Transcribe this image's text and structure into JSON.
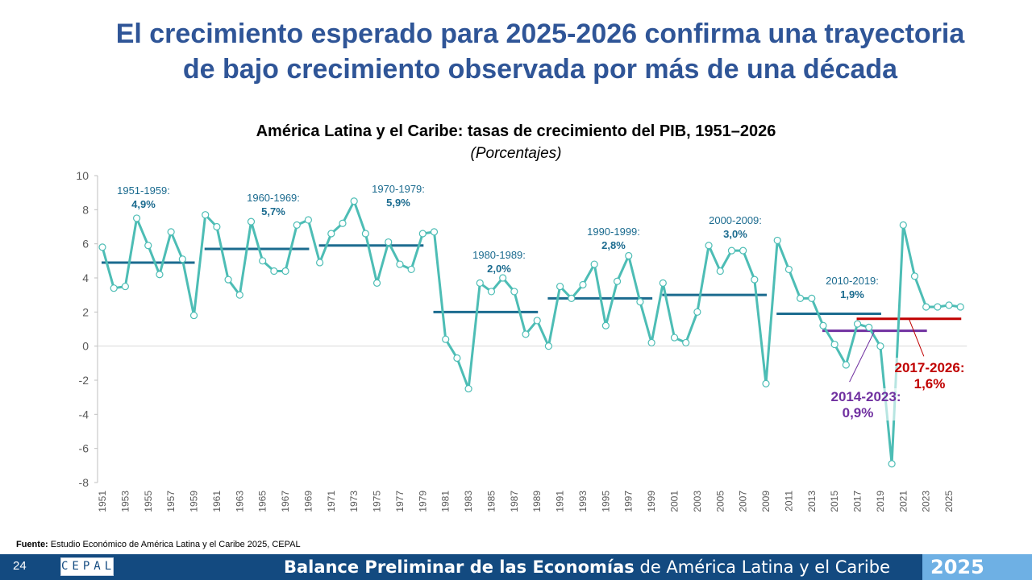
{
  "slide": {
    "title_line1": "El crecimiento esperado para 2025-2026 confirma una trayectoria",
    "title_line2": "de bajo crecimiento observada por más de una década",
    "source_label": "Fuente:",
    "source_text": " Estudio Económico de América Latina y el Caribe 2025, CEPAL",
    "footer": {
      "page_number": "24",
      "logo_text": "CEPAL",
      "publication_bold": "Balance Preliminar de las Economías",
      "publication_light": " de América Latina y el Caribe",
      "year": "2025"
    }
  },
  "colors": {
    "title": "#2f5597",
    "series": "#4dbdb5",
    "decade_avg": "#1b6b8f",
    "avg_2014_2023": "#7030a0",
    "avg_2017_2026": "#c00000",
    "footer_dark": "#134a80",
    "footer_light": "#6eb0e4"
  },
  "chart_data": {
    "type": "line",
    "title": "América Latina y el Caribe: tasas de crecimiento del PIB, 1951–2026",
    "subtitle": "(Porcentajes)",
    "xlabel": "",
    "ylabel": "",
    "ylim": [
      -8,
      10
    ],
    "yticks": [
      10,
      8,
      6,
      4,
      2,
      0,
      -2,
      -4,
      -6,
      -8
    ],
    "x_tick_labels": [
      "1951",
      "1953",
      "1955",
      "1957",
      "1959",
      "1961",
      "1963",
      "1965",
      "1967",
      "1969",
      "1971",
      "1973",
      "1975",
      "1977",
      "1979",
      "1981",
      "1983",
      "1985",
      "1987",
      "1989",
      "1991",
      "1993",
      "1995",
      "1997",
      "1999",
      "2001",
      "2003",
      "2005",
      "2007",
      "2009",
      "2011",
      "2013",
      "2015",
      "2017",
      "2019",
      "2021",
      "2023",
      "2025"
    ],
    "grid": false,
    "x": [
      1951,
      1952,
      1953,
      1954,
      1955,
      1956,
      1957,
      1958,
      1959,
      1960,
      1961,
      1962,
      1963,
      1964,
      1965,
      1966,
      1967,
      1968,
      1969,
      1970,
      1971,
      1972,
      1973,
      1974,
      1975,
      1976,
      1977,
      1978,
      1979,
      1980,
      1981,
      1982,
      1983,
      1984,
      1985,
      1986,
      1987,
      1988,
      1989,
      1990,
      1991,
      1992,
      1993,
      1994,
      1995,
      1996,
      1997,
      1998,
      1999,
      2000,
      2001,
      2002,
      2003,
      2004,
      2005,
      2006,
      2007,
      2008,
      2009,
      2010,
      2011,
      2012,
      2013,
      2014,
      2015,
      2016,
      2017,
      2018,
      2019,
      2020,
      2021,
      2022,
      2023,
      2024,
      2025,
      2026
    ],
    "series": [
      {
        "name": "Tasa de crecimiento del PIB",
        "values": [
          5.8,
          3.4,
          3.5,
          7.5,
          5.9,
          4.2,
          6.7,
          5.1,
          1.8,
          7.7,
          7.0,
          3.9,
          3.0,
          7.3,
          5.0,
          4.4,
          4.4,
          7.1,
          7.4,
          4.9,
          6.6,
          7.2,
          8.5,
          6.6,
          3.7,
          6.1,
          4.8,
          4.5,
          6.6,
          6.7,
          0.4,
          -0.7,
          -2.5,
          3.7,
          3.2,
          4.0,
          3.2,
          0.7,
          1.5,
          0.0,
          3.5,
          2.8,
          3.6,
          4.8,
          1.2,
          3.8,
          5.3,
          2.6,
          0.2,
          3.7,
          0.5,
          0.2,
          2.0,
          5.9,
          4.4,
          5.6,
          5.6,
          3.9,
          -2.2,
          6.2,
          4.5,
          2.8,
          2.8,
          1.2,
          0.1,
          -1.1,
          1.3,
          1.1,
          0.0,
          -6.9,
          7.1,
          4.1,
          2.3,
          2.3,
          2.4,
          2.3
        ]
      }
    ],
    "averages": [
      {
        "period": "1951-1959:",
        "value_label": "4,9%",
        "value": 4.9,
        "start": 1951,
        "end": 1959,
        "kind": "decade"
      },
      {
        "period": "1960-1969:",
        "value_label": "5,7%",
        "value": 5.7,
        "start": 1960,
        "end": 1969,
        "kind": "decade"
      },
      {
        "period": "1970-1979:",
        "value_label": "5,9%",
        "value": 5.9,
        "start": 1970,
        "end": 1979,
        "kind": "decade"
      },
      {
        "period": "1980-1989:",
        "value_label": "2,0%",
        "value": 2.0,
        "start": 1980,
        "end": 1989,
        "kind": "decade"
      },
      {
        "period": "1990-1999:",
        "value_label": "2,8%",
        "value": 2.8,
        "start": 1990,
        "end": 1999,
        "kind": "decade"
      },
      {
        "period": "2000-2009:",
        "value_label": "3,0%",
        "value": 3.0,
        "start": 2000,
        "end": 2009,
        "kind": "decade"
      },
      {
        "period": "2010-2019:",
        "value_label": "1,9%",
        "value": 1.9,
        "start": 2010,
        "end": 2019,
        "kind": "decade"
      },
      {
        "period": "2014-2023:",
        "value_label": "0,9%",
        "value": 0.9,
        "start": 2014,
        "end": 2023,
        "kind": "purple"
      },
      {
        "period": "2017-2026:",
        "value_label": "1,6%",
        "value": 1.6,
        "start": 2017,
        "end": 2026,
        "kind": "red"
      }
    ]
  }
}
